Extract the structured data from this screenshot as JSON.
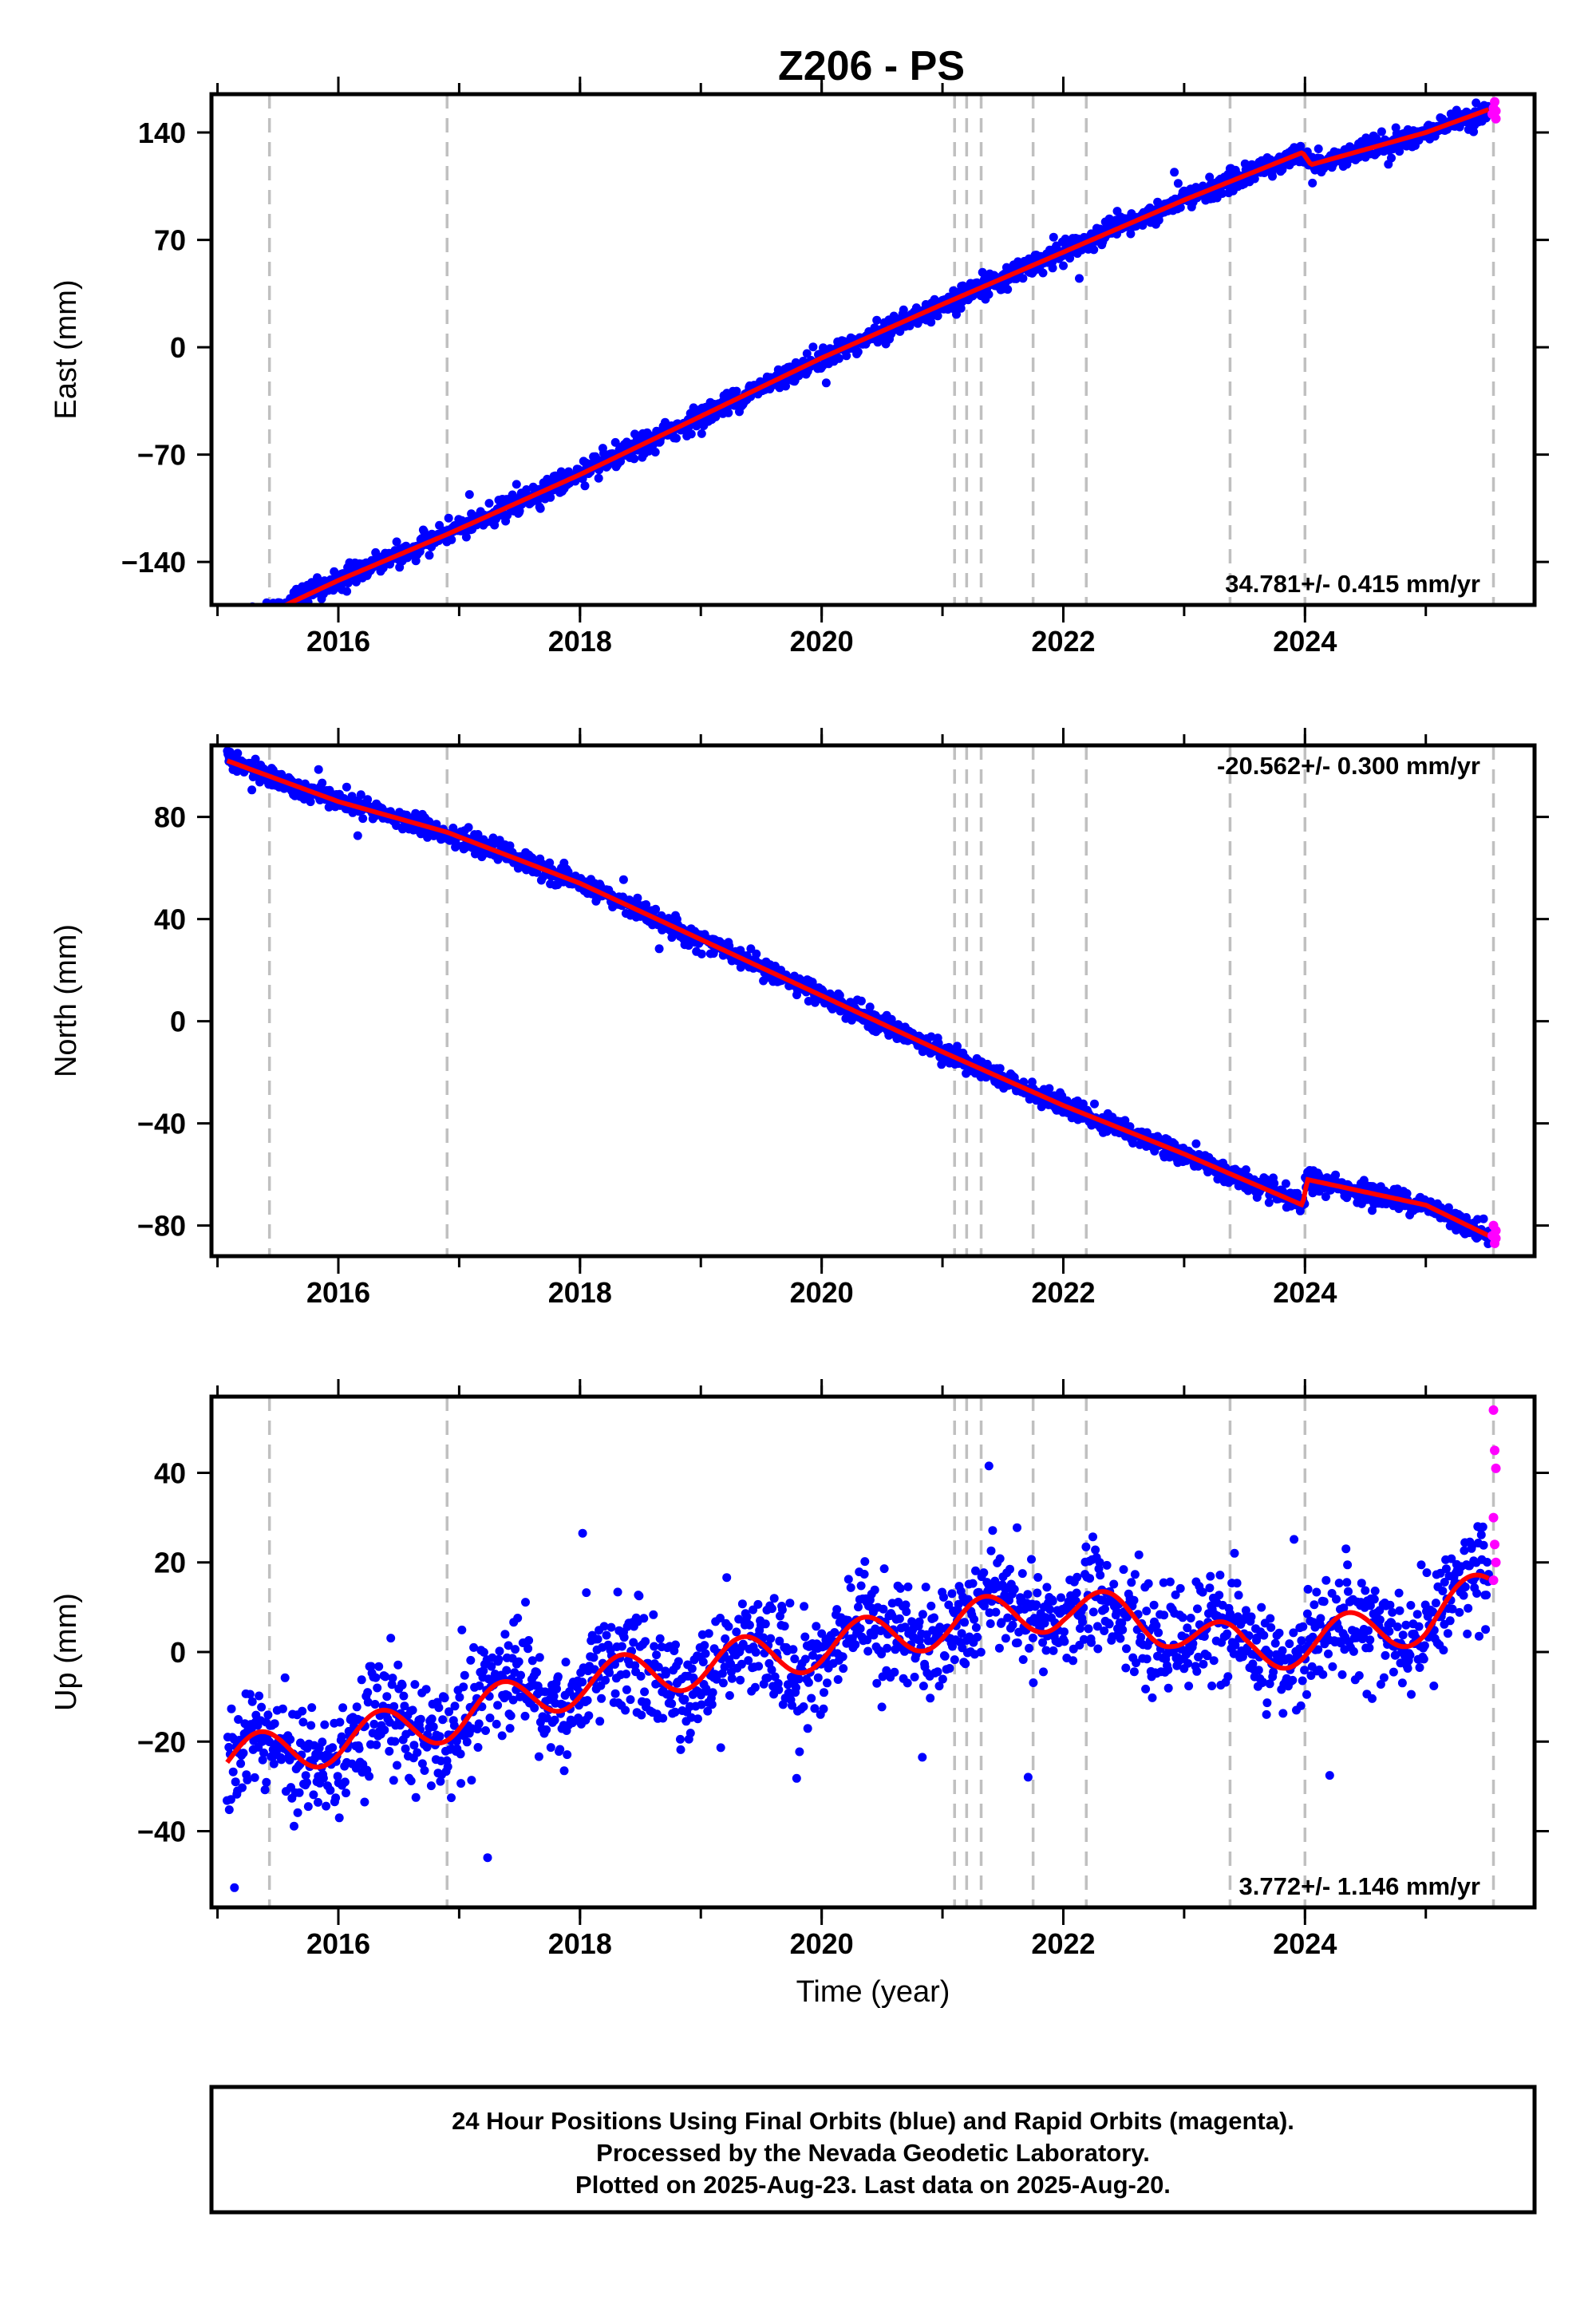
{
  "title": "Z206 - PS",
  "footer": {
    "lines": [
      "24 Hour Positions Using Final Orbits (blue) and Rapid Orbits (magenta).",
      "Processed by the Nevada Geodetic Laboratory.",
      "Plotted on 2025-Aug-23. Last data on 2025-Aug-20."
    ]
  },
  "colors": {
    "final_orbits": "#0000ff",
    "rapid_orbits": "#ff00ff",
    "model_fit": "#ff0000",
    "event_lines": "#c0c0c0"
  },
  "chart_data": [
    {
      "type": "scatter",
      "ylabel": "East (mm)",
      "xlabel": "",
      "xlim": [
        2014.95,
        2025.9
      ],
      "ylim": [
        -168,
        165
      ],
      "x_ticks": [
        2016,
        2018,
        2020,
        2022,
        2024
      ],
      "y_ticks": [
        -140,
        -70,
        0,
        70,
        140
      ],
      "rate_label": "34.781+/- 0.415 mm/yr",
      "rate_label_position": "bottom-right",
      "events": [
        2015.43,
        2016.9,
        2021.1,
        2021.2,
        2021.32,
        2021.75,
        2022.19,
        2023.38,
        2024.0,
        2025.56
      ],
      "final_orbits": {
        "x_range": [
          2015.08,
          2025.52
        ],
        "trend_points": [
          [
            2015.08,
            -186
          ],
          [
            2016.0,
            -152
          ],
          [
            2016.9,
            -122
          ],
          [
            2018.0,
            -83
          ],
          [
            2019.0,
            -45
          ],
          [
            2020.0,
            -7
          ],
          [
            2021.0,
            28
          ],
          [
            2022.0,
            62
          ],
          [
            2023.0,
            96
          ],
          [
            2023.98,
            127
          ],
          [
            2024.05,
            119
          ],
          [
            2025.0,
            140
          ],
          [
            2025.52,
            155
          ]
        ],
        "scatter_sd": 3.5,
        "n_points": 1700
      },
      "rapid_orbits": {
        "points": [
          [
            2025.55,
            152
          ],
          [
            2025.56,
            156
          ],
          [
            2025.57,
            160
          ],
          [
            2025.58,
            149
          ],
          [
            2025.58,
            154
          ]
        ]
      }
    },
    {
      "type": "scatter",
      "ylabel": "North (mm)",
      "xlabel": "",
      "xlim": [
        2014.95,
        2025.9
      ],
      "ylim": [
        -92,
        108
      ],
      "x_ticks": [
        2016,
        2018,
        2020,
        2022,
        2024
      ],
      "y_ticks": [
        -80,
        -40,
        0,
        40,
        80
      ],
      "rate_label": "-20.562+/- 0.300 mm/yr",
      "rate_label_position": "top-right",
      "events": [
        2015.43,
        2016.9,
        2021.1,
        2021.2,
        2021.32,
        2021.75,
        2022.19,
        2023.38,
        2024.0,
        2025.56
      ],
      "final_orbits": {
        "x_range": [
          2015.08,
          2025.52
        ],
        "trend_points": [
          [
            2015.08,
            102
          ],
          [
            2016.0,
            86
          ],
          [
            2016.9,
            74
          ],
          [
            2018.0,
            54
          ],
          [
            2019.0,
            32
          ],
          [
            2020.0,
            10
          ],
          [
            2021.0,
            -12
          ],
          [
            2022.0,
            -33
          ],
          [
            2023.0,
            -52
          ],
          [
            2023.98,
            -72
          ],
          [
            2024.02,
            -62
          ],
          [
            2025.0,
            -72
          ],
          [
            2025.52,
            -84
          ]
        ],
        "scatter_sd": 2.0,
        "n_points": 1700
      },
      "rapid_orbits": {
        "points": [
          [
            2025.55,
            -84
          ],
          [
            2025.56,
            -80
          ],
          [
            2025.57,
            -87
          ],
          [
            2025.58,
            -82
          ],
          [
            2025.58,
            -85
          ]
        ]
      }
    },
    {
      "type": "scatter",
      "ylabel": "Up (mm)",
      "xlabel": "Time (year)",
      "xlim": [
        2014.95,
        2025.9
      ],
      "ylim": [
        -57,
        57
      ],
      "x_ticks": [
        2016,
        2018,
        2020,
        2022,
        2024
      ],
      "y_ticks": [
        -40,
        -20,
        0,
        20,
        40
      ],
      "rate_label": "3.772+/- 1.146 mm/yr",
      "rate_label_position": "bottom-right",
      "events": [
        2015.43,
        2016.9,
        2021.1,
        2021.2,
        2021.32,
        2021.75,
        2022.19,
        2023.38,
        2024.0,
        2025.56
      ],
      "final_orbits": {
        "x_range": [
          2015.08,
          2025.52
        ],
        "trend_points": [
          [
            2015.08,
            -24
          ],
          [
            2016.0,
            -20
          ],
          [
            2016.9,
            -15
          ],
          [
            2018.0,
            -7
          ],
          [
            2019.0,
            -3
          ],
          [
            2020.0,
            1
          ],
          [
            2021.0,
            6
          ],
          [
            2022.0,
            10
          ],
          [
            2022.9,
            6
          ],
          [
            2023.5,
            0
          ],
          [
            2024.0,
            2
          ],
          [
            2025.0,
            7
          ],
          [
            2025.52,
            14
          ]
        ],
        "seasonal_amplitude": 5,
        "scatter_sd": 6,
        "n_points": 1700
      },
      "rapid_orbits": {
        "points": [
          [
            2025.56,
            54
          ],
          [
            2025.57,
            45
          ],
          [
            2025.58,
            41
          ],
          [
            2025.56,
            30
          ],
          [
            2025.57,
            24
          ],
          [
            2025.58,
            20
          ],
          [
            2025.56,
            16
          ]
        ]
      }
    }
  ]
}
